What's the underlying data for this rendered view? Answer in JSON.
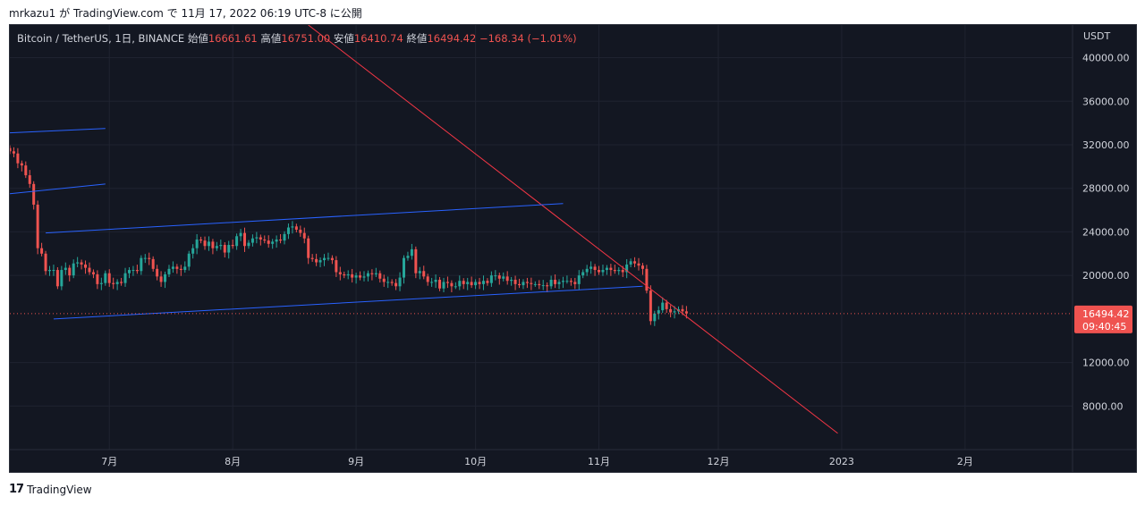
{
  "publication": {
    "author": "mrkazu1",
    "ga": "が",
    "platform": "TradingView.com",
    "de": "で",
    "datetime": "11月 17, 2022 06:19 UTC-8",
    "suffix": "に公開"
  },
  "legend": {
    "symbol": "Bitcoin / TetherUS, 1日, BINANCE",
    "open_label": "始値",
    "open_value": "16661.61",
    "high_label": "高値",
    "high_value": "16751.00",
    "low_label": "安値",
    "low_value": "16410.74",
    "close_label": "終値",
    "close_value": "16494.42",
    "change": "−168.34 (−1.01%)"
  },
  "price_scale": {
    "currency": "USDT",
    "ticks": [
      "40000.00",
      "36000.00",
      "32000.00",
      "28000.00",
      "24000.00",
      "20000.00",
      "12000.00",
      "8000.00"
    ],
    "current_price": "16494.42",
    "countdown": "09:40:45"
  },
  "time_axis": {
    "ticks": [
      "7月",
      "8月",
      "9月",
      "10月",
      "11月",
      "12月",
      "2023",
      "2月"
    ]
  },
  "colors": {
    "background": "#131722",
    "grid": "#1f2330",
    "up": "#26a69a",
    "down": "#ef5350",
    "trendline_red": "#f23645",
    "channel_blue": "#2962ff",
    "text": "#d1d4dc"
  },
  "footer": {
    "brand": "TradingView",
    "logo": "17"
  },
  "chart_data": {
    "type": "candlestick",
    "symbol": "BTCUSDT",
    "interval": "1D",
    "y_axis": {
      "min": 4000,
      "max": 43000,
      "scale": "linear"
    },
    "x_axis_range": [
      "2022-06-06",
      "2023-02-28"
    ],
    "current_price": 16494.42,
    "closes_daily": {
      "start": "2022-06-06",
      "values": [
        31400,
        31200,
        30300,
        30100,
        29200,
        28400,
        26500,
        22500,
        22000,
        20400,
        20500,
        20500,
        19000,
        20500,
        20700,
        20000,
        21100,
        21200,
        21000,
        20700,
        20300,
        20100,
        19200,
        19300,
        20200,
        19300,
        19200,
        19400,
        19300,
        20200,
        20500,
        20500,
        20400,
        21600,
        21600,
        21500,
        20600,
        19900,
        19400,
        20100,
        20600,
        20800,
        20600,
        20500,
        20800,
        22000,
        22500,
        23300,
        23200,
        22700,
        23100,
        22500,
        22700,
        22800,
        22100,
        22800,
        22700,
        23600,
        23900,
        22700,
        23000,
        23400,
        23500,
        23300,
        23200,
        22900,
        23100,
        23300,
        23200,
        23800,
        24400,
        24500,
        24200,
        23900,
        23400,
        21600,
        21500,
        21200,
        21400,
        21600,
        21600,
        21400,
        20300,
        20100,
        20000,
        20100,
        19800,
        20000,
        19800,
        19900,
        20200,
        20100,
        20200,
        19700,
        19400,
        19400,
        19300,
        19000,
        19800,
        21600,
        21800,
        22400,
        20200,
        20400,
        19900,
        19400,
        19400,
        19600,
        18800,
        19400,
        19300,
        19000,
        19000,
        19500,
        19200,
        19400,
        19100,
        19400,
        19200,
        19500,
        19300,
        20000,
        20000,
        19700,
        19900,
        19500,
        19600,
        19200,
        19100,
        19400,
        19300,
        19200,
        19200,
        19100,
        19100,
        19000,
        19600,
        19200,
        19400,
        19500,
        19500,
        19400,
        19200,
        20000,
        20300,
        20600,
        20800,
        20500,
        20300,
        20500,
        20700,
        20500,
        20400,
        20500,
        20300,
        21000,
        21300,
        21100,
        20900,
        20600,
        18600,
        15800,
        16500,
        16800,
        17500,
        16900,
        16600,
        16700,
        16900,
        16700,
        16500
      ]
    },
    "trendlines": [
      {
        "name": "red-descending-trendline",
        "color": "#f23645",
        "points": [
          [
            "2022-08-20",
            43000
          ],
          [
            "2022-12-31",
            5500
          ]
        ]
      },
      {
        "name": "upper-parallel-line-1",
        "color": "#2962ff",
        "points": [
          [
            "2022-06-06",
            33100
          ],
          [
            "2022-06-30",
            33500
          ]
        ]
      },
      {
        "name": "upper-parallel-line-2",
        "color": "#2962ff",
        "points": [
          [
            "2022-06-06",
            27500
          ],
          [
            "2022-06-30",
            28400
          ]
        ]
      },
      {
        "name": "channel-top",
        "color": "#2962ff",
        "points": [
          [
            "2022-06-15",
            23900
          ],
          [
            "2022-10-23",
            26600
          ]
        ]
      },
      {
        "name": "channel-bottom",
        "color": "#2962ff",
        "points": [
          [
            "2022-06-17",
            16000
          ],
          [
            "2022-11-12",
            19000
          ]
        ]
      }
    ],
    "horizontal_lines": [
      {
        "name": "last-price-line",
        "color": "#ef5350",
        "value": 16494.42,
        "style": "dotted"
      }
    ],
    "grid": true,
    "legend_position": "top-left"
  }
}
